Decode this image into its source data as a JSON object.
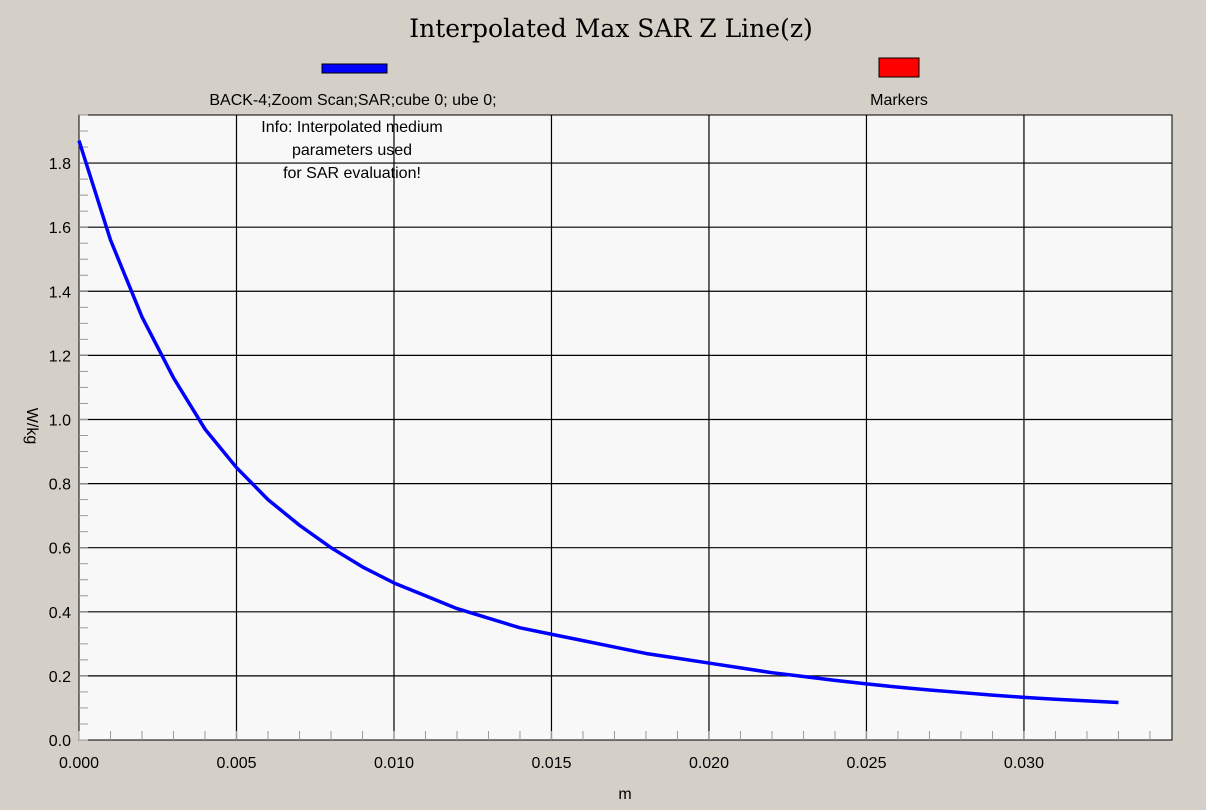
{
  "chart_data": {
    "type": "line",
    "title": "Interpolated Max SAR Z Line(z)",
    "xlabel": "m",
    "ylabel": "W/kg",
    "xlim": [
      0.0,
      0.0347
    ],
    "ylim": [
      0.0,
      1.95
    ],
    "x_ticks": [
      "0.000",
      "0.005",
      "0.010",
      "0.015",
      "0.020",
      "0.025",
      "0.030"
    ],
    "y_ticks": [
      "0.0",
      "0.2",
      "0.4",
      "0.6",
      "0.8",
      "1.0",
      "1.2",
      "1.4",
      "1.6",
      "1.8"
    ],
    "grid": true,
    "legend_position": "top",
    "legend": [
      {
        "label": "BACK-4;Zoom Scan;SAR;cube 0; ube 0;",
        "color": "#0000ff"
      },
      {
        "label": "Markers",
        "color": "#ff0000"
      }
    ],
    "annotation": [
      "Info: Interpolated medium",
      "parameters used",
      "for SAR evaluation!"
    ],
    "series": [
      {
        "name": "BACK-4;Zoom Scan;SAR;cube 0; ube 0;",
        "color": "#0000ff",
        "x": [
          0.0,
          0.001,
          0.002,
          0.003,
          0.004,
          0.005,
          0.006,
          0.007,
          0.008,
          0.009,
          0.01,
          0.011,
          0.012,
          0.013,
          0.014,
          0.015,
          0.016,
          0.017,
          0.018,
          0.019,
          0.02,
          0.021,
          0.022,
          0.023,
          0.024,
          0.025,
          0.026,
          0.027,
          0.028,
          0.029,
          0.03,
          0.031,
          0.032,
          0.033
        ],
        "y": [
          1.87,
          1.56,
          1.32,
          1.13,
          0.97,
          0.85,
          0.75,
          0.67,
          0.6,
          0.54,
          0.49,
          0.45,
          0.41,
          0.38,
          0.35,
          0.33,
          0.31,
          0.29,
          0.27,
          0.255,
          0.24,
          0.225,
          0.21,
          0.198,
          0.186,
          0.175,
          0.165,
          0.156,
          0.148,
          0.14,
          0.133,
          0.127,
          0.122,
          0.117
        ]
      }
    ]
  }
}
